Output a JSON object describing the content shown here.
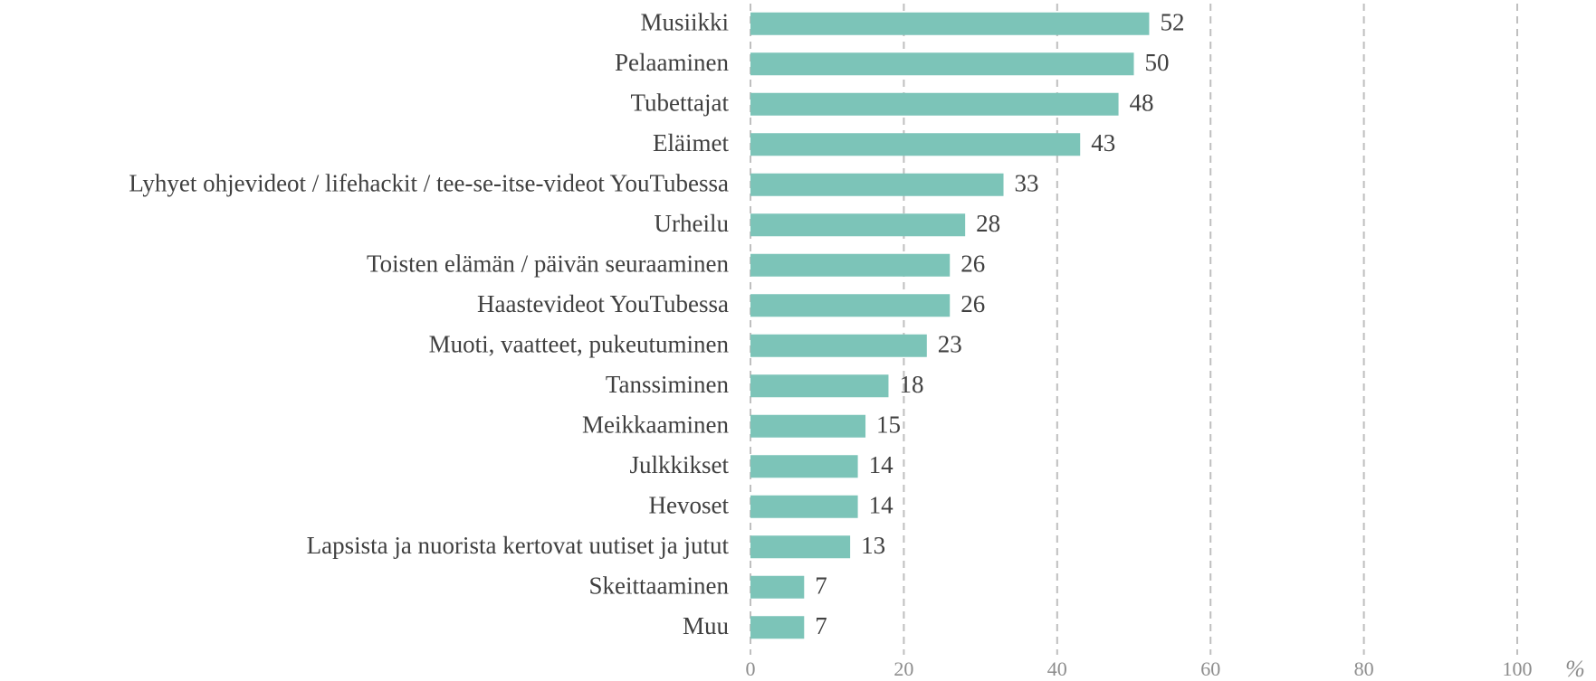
{
  "chart_data": {
    "type": "bar",
    "orientation": "horizontal",
    "categories": [
      "Musiikki",
      "Pelaaminen",
      "Tubettajat",
      "Eläimet",
      "Lyhyet ohjevideot / lifehackit / tee-se-itse-videot YouTubessa",
      "Urheilu",
      "Toisten elämän / päivän seuraaminen",
      "Haastevideot YouTubessa",
      "Muoti, vaatteet, pukeutuminen",
      "Tanssiminen",
      "Meikkaaminen",
      "Julkkikset",
      "Hevoset",
      "Lapsista ja nuorista kertovat uutiset ja jutut",
      "Skeittaaminen",
      "Muu"
    ],
    "values": [
      52,
      50,
      48,
      43,
      33,
      28,
      26,
      26,
      23,
      18,
      15,
      14,
      14,
      13,
      7,
      7
    ],
    "color": "#7cc4b8",
    "xlabel": "%",
    "xlim": [
      0,
      100
    ],
    "xticks": [
      0,
      20,
      40,
      60,
      80,
      100
    ],
    "grid": true
  }
}
